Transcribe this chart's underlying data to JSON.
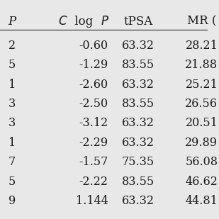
{
  "partial_left_col": [
    "2",
    "5",
    "1",
    "3",
    "3",
    "1",
    "7",
    "5",
    "9"
  ],
  "partial_left_header": "P",
  "rows": [
    [
      "-0.60",
      "63.32",
      "28.21"
    ],
    [
      "-1.29",
      "83.55",
      "21.88"
    ],
    [
      "-2.60",
      "63.32",
      "25.21"
    ],
    [
      "-2.50",
      "83.55",
      "26.56"
    ],
    [
      "-3.12",
      "63.32",
      "20.51"
    ],
    [
      "-2.29",
      "63.32",
      "29.89"
    ],
    [
      "-1.57",
      "75.35",
      "56.08"
    ],
    [
      "-2.22",
      "83.55",
      "46.62"
    ],
    [
      "1.144",
      "63.32",
      "44.81"
    ]
  ],
  "background_color": "#e8e8e8",
  "text_color": "#1a1a1a",
  "header_line_color": "#555555",
  "font_size": 11.5,
  "header_font_size": 12
}
